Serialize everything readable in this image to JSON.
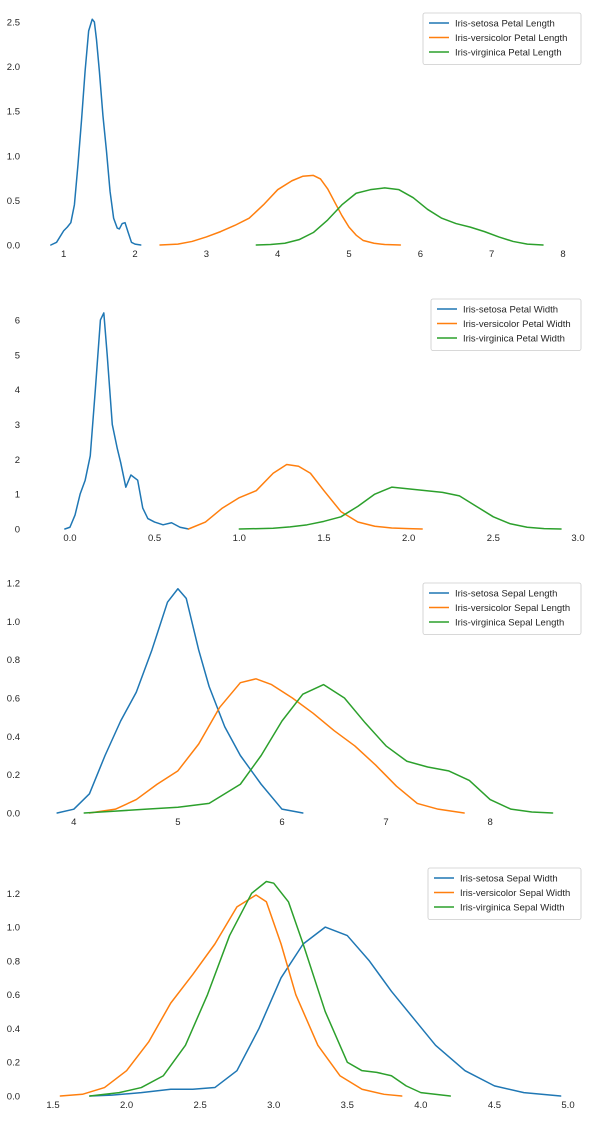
{
  "chart_data": [
    {
      "type": "line",
      "xlim": [
        0.85,
        8.0
      ],
      "ylim": [
        0.0,
        2.6
      ],
      "xticks": [
        "1",
        "2",
        "3",
        "4",
        "5",
        "6",
        "7",
        "8"
      ],
      "yticks": [
        "0.0",
        "0.5",
        "1.0",
        "1.5",
        "2.0",
        "2.5"
      ],
      "grid": false,
      "legend_position": "top-right",
      "series": [
        {
          "name": "Iris-setosa Petal Length",
          "color": "#1f77b4",
          "x": [
            0.82,
            0.9,
            1.0,
            1.05,
            1.1,
            1.15,
            1.2,
            1.25,
            1.3,
            1.35,
            1.4,
            1.43,
            1.46,
            1.5,
            1.55,
            1.6,
            1.65,
            1.7,
            1.75,
            1.78,
            1.82,
            1.86,
            1.9,
            1.95,
            2.0,
            2.08
          ],
          "y": [
            0.0,
            0.03,
            0.16,
            0.2,
            0.25,
            0.45,
            0.9,
            1.4,
            1.95,
            2.4,
            2.53,
            2.5,
            2.3,
            1.95,
            1.45,
            1.05,
            0.6,
            0.3,
            0.19,
            0.18,
            0.24,
            0.25,
            0.15,
            0.03,
            0.01,
            0.0
          ]
        },
        {
          "name": "Iris-versicolor  Petal Length",
          "color": "#ff7f0e",
          "x": [
            2.35,
            2.6,
            2.8,
            3.0,
            3.2,
            3.4,
            3.6,
            3.8,
            4.0,
            4.2,
            4.35,
            4.5,
            4.6,
            4.7,
            4.8,
            4.9,
            5.0,
            5.1,
            5.2,
            5.35,
            5.5,
            5.72
          ],
          "y": [
            0.0,
            0.01,
            0.04,
            0.09,
            0.15,
            0.22,
            0.3,
            0.45,
            0.62,
            0.72,
            0.77,
            0.78,
            0.74,
            0.63,
            0.48,
            0.33,
            0.2,
            0.11,
            0.05,
            0.02,
            0.005,
            0.0
          ]
        },
        {
          "name": "Iris-virginica  Petal Length",
          "color": "#2ca02c",
          "x": [
            3.7,
            3.9,
            4.1,
            4.3,
            4.5,
            4.7,
            4.9,
            5.1,
            5.3,
            5.5,
            5.7,
            5.9,
            6.1,
            6.3,
            6.5,
            6.7,
            6.9,
            7.1,
            7.3,
            7.5,
            7.72
          ],
          "y": [
            0.0,
            0.005,
            0.02,
            0.06,
            0.14,
            0.28,
            0.45,
            0.58,
            0.62,
            0.64,
            0.62,
            0.53,
            0.4,
            0.3,
            0.24,
            0.2,
            0.15,
            0.09,
            0.04,
            0.01,
            0.0
          ]
        }
      ]
    },
    {
      "type": "line",
      "xlim": [
        -0.1,
        3.0
      ],
      "ylim": [
        0.0,
        6.6
      ],
      "xticks": [
        "0.0",
        "0.5",
        "1.0",
        "1.5",
        "2.0",
        "2.5",
        "3.0"
      ],
      "yticks": [
        "0",
        "1",
        "2",
        "3",
        "4",
        "5",
        "6"
      ],
      "grid": false,
      "legend_position": "top-right",
      "series": [
        {
          "name": "Iris-setosa Petal Width",
          "color": "#1f77b4",
          "x": [
            -0.03,
            0.0,
            0.03,
            0.06,
            0.09,
            0.12,
            0.15,
            0.18,
            0.2,
            0.22,
            0.25,
            0.28,
            0.3,
            0.33,
            0.36,
            0.4,
            0.43,
            0.46,
            0.5,
            0.55,
            0.6,
            0.65,
            0.7
          ],
          "y": [
            0.0,
            0.05,
            0.4,
            1.0,
            1.4,
            2.1,
            4.0,
            6.0,
            6.2,
            5.0,
            3.0,
            2.3,
            1.9,
            1.2,
            1.55,
            1.4,
            0.6,
            0.3,
            0.2,
            0.12,
            0.18,
            0.05,
            0.0
          ]
        },
        {
          "name": "Iris-versicolor Petal Width",
          "color": "#ff7f0e",
          "x": [
            0.7,
            0.8,
            0.9,
            1.0,
            1.1,
            1.2,
            1.28,
            1.35,
            1.42,
            1.5,
            1.6,
            1.7,
            1.8,
            1.9,
            2.0,
            2.08
          ],
          "y": [
            0.0,
            0.2,
            0.6,
            0.9,
            1.1,
            1.6,
            1.85,
            1.8,
            1.6,
            1.1,
            0.5,
            0.2,
            0.08,
            0.03,
            0.01,
            0.0
          ]
        },
        {
          "name": "Iris-virginica Petal Width",
          "color": "#2ca02c",
          "x": [
            1.0,
            1.2,
            1.3,
            1.4,
            1.5,
            1.6,
            1.7,
            1.8,
            1.9,
            2.0,
            2.1,
            2.2,
            2.3,
            2.4,
            2.5,
            2.6,
            2.7,
            2.8,
            2.9
          ],
          "y": [
            0.0,
            0.02,
            0.06,
            0.12,
            0.22,
            0.35,
            0.65,
            1.0,
            1.2,
            1.15,
            1.1,
            1.05,
            0.95,
            0.65,
            0.35,
            0.15,
            0.05,
            0.01,
            0.0
          ]
        }
      ]
    },
    {
      "type": "line",
      "xlim": [
        3.8,
        8.7
      ],
      "ylim": [
        0.0,
        1.2
      ],
      "xticks": [
        "4",
        "5",
        "6",
        "7",
        "8"
      ],
      "yticks": [
        "0.0",
        "0.2",
        "0.4",
        "0.6",
        "0.8",
        "1.0",
        "1.2"
      ],
      "grid": false,
      "legend_position": "top-right",
      "series": [
        {
          "name": "Iris-setosa Sepal Length",
          "color": "#1f77b4",
          "x": [
            3.84,
            4.0,
            4.15,
            4.3,
            4.45,
            4.6,
            4.75,
            4.9,
            5.0,
            5.08,
            5.2,
            5.3,
            5.45,
            5.6,
            5.8,
            6.0,
            6.2
          ],
          "y": [
            0.0,
            0.02,
            0.1,
            0.3,
            0.48,
            0.63,
            0.85,
            1.1,
            1.17,
            1.12,
            0.85,
            0.66,
            0.45,
            0.3,
            0.15,
            0.02,
            0.0
          ]
        },
        {
          "name": "Iris-versicolor Sepal Length",
          "color": "#ff7f0e",
          "x": [
            4.15,
            4.4,
            4.6,
            4.8,
            5.0,
            5.2,
            5.4,
            5.6,
            5.75,
            5.9,
            6.1,
            6.3,
            6.5,
            6.7,
            6.9,
            7.1,
            7.3,
            7.5,
            7.75
          ],
          "y": [
            0.0,
            0.02,
            0.07,
            0.15,
            0.22,
            0.36,
            0.55,
            0.68,
            0.7,
            0.67,
            0.6,
            0.52,
            0.43,
            0.35,
            0.25,
            0.14,
            0.05,
            0.02,
            0.0
          ]
        },
        {
          "name": "Iris-virginica Sepal Length",
          "color": "#2ca02c",
          "x": [
            4.1,
            4.4,
            4.7,
            5.0,
            5.3,
            5.6,
            5.8,
            6.0,
            6.2,
            6.4,
            6.6,
            6.8,
            7.0,
            7.2,
            7.4,
            7.6,
            7.8,
            8.0,
            8.2,
            8.4,
            8.6
          ],
          "y": [
            0.0,
            0.01,
            0.02,
            0.03,
            0.05,
            0.15,
            0.3,
            0.48,
            0.62,
            0.67,
            0.6,
            0.47,
            0.35,
            0.27,
            0.24,
            0.22,
            0.17,
            0.07,
            0.02,
            0.005,
            0.0
          ]
        }
      ]
    },
    {
      "type": "line",
      "xlim": [
        1.5,
        5.0
      ],
      "ylim": [
        0.0,
        1.35
      ],
      "xticks": [
        "1.5",
        "2.0",
        "2.5",
        "3.0",
        "3.5",
        "4.0",
        "4.5",
        "5.0"
      ],
      "yticks": [
        "0.0",
        "0.2",
        "0.4",
        "0.6",
        "0.8",
        "1.0",
        "1.2"
      ],
      "grid": false,
      "legend_position": "top-right",
      "series": [
        {
          "name": "Iris-setosa Sepal Width",
          "color": "#1f77b4",
          "x": [
            1.75,
            1.9,
            2.1,
            2.3,
            2.45,
            2.6,
            2.75,
            2.9,
            3.05,
            3.2,
            3.35,
            3.5,
            3.65,
            3.8,
            3.95,
            4.1,
            4.3,
            4.5,
            4.7,
            4.95
          ],
          "y": [
            0.0,
            0.005,
            0.02,
            0.04,
            0.04,
            0.05,
            0.15,
            0.4,
            0.7,
            0.9,
            1.0,
            0.95,
            0.8,
            0.62,
            0.46,
            0.3,
            0.15,
            0.06,
            0.02,
            0.0
          ]
        },
        {
          "name": "Iris-versicolor Sepal Width",
          "color": "#ff7f0e",
          "x": [
            1.55,
            1.7,
            1.85,
            2.0,
            2.15,
            2.3,
            2.45,
            2.6,
            2.75,
            2.88,
            2.95,
            3.05,
            3.15,
            3.3,
            3.45,
            3.6,
            3.75,
            3.87
          ],
          "y": [
            0.0,
            0.01,
            0.05,
            0.15,
            0.32,
            0.55,
            0.72,
            0.9,
            1.12,
            1.19,
            1.15,
            0.9,
            0.6,
            0.3,
            0.12,
            0.04,
            0.01,
            0.0
          ]
        },
        {
          "name": "Iris-virginica Sepal Width",
          "color": "#2ca02c",
          "x": [
            1.75,
            1.95,
            2.1,
            2.25,
            2.4,
            2.55,
            2.7,
            2.85,
            2.95,
            3.0,
            3.1,
            3.2,
            3.35,
            3.5,
            3.6,
            3.7,
            3.8,
            3.9,
            4.0,
            4.2
          ],
          "y": [
            0.0,
            0.02,
            0.05,
            0.12,
            0.3,
            0.6,
            0.95,
            1.2,
            1.27,
            1.26,
            1.15,
            0.9,
            0.5,
            0.2,
            0.15,
            0.14,
            0.12,
            0.06,
            0.02,
            0.0
          ]
        }
      ]
    }
  ]
}
